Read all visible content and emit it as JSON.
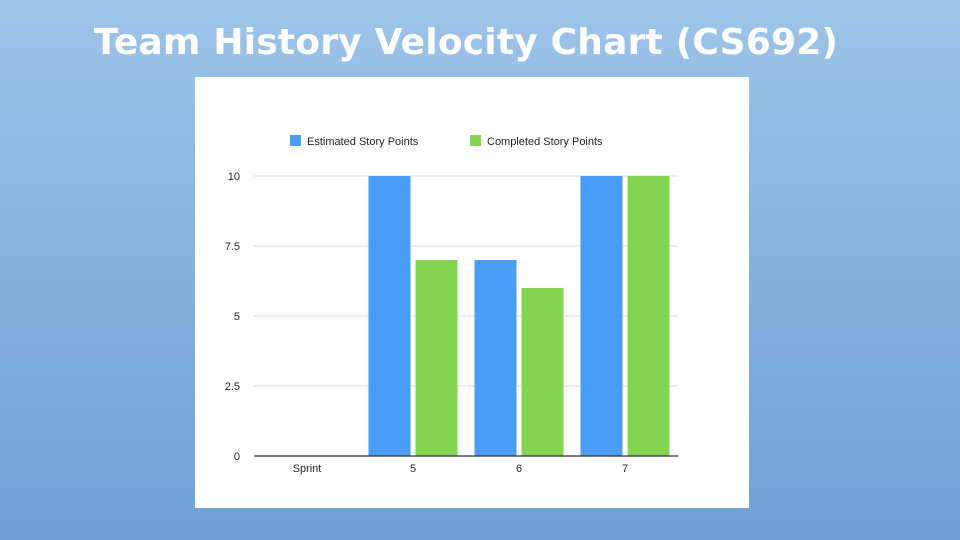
{
  "slide": {
    "title": "Team History Velocity Chart (CS692)"
  },
  "chart_data": {
    "type": "bar",
    "title": "",
    "xlabel": "",
    "ylabel": "",
    "categories": [
      "Sprint",
      "5",
      "6",
      "7"
    ],
    "series": [
      {
        "name": "Estimated Story Points",
        "color": "#4a9cf4",
        "values": [
          null,
          10,
          7,
          10
        ]
      },
      {
        "name": "Completed Story Points",
        "color": "#84d454",
        "values": [
          null,
          7,
          6,
          10
        ]
      }
    ],
    "ylim": [
      0,
      10
    ],
    "yticks": [
      {
        "value": 0,
        "label": "0"
      },
      {
        "value": 2.5,
        "label": "2.5"
      },
      {
        "value": 5,
        "label": "5"
      },
      {
        "value": 7.5,
        "label": "7.5"
      },
      {
        "value": 10,
        "label": "10"
      }
    ],
    "grid": true,
    "legend_position": "top"
  }
}
